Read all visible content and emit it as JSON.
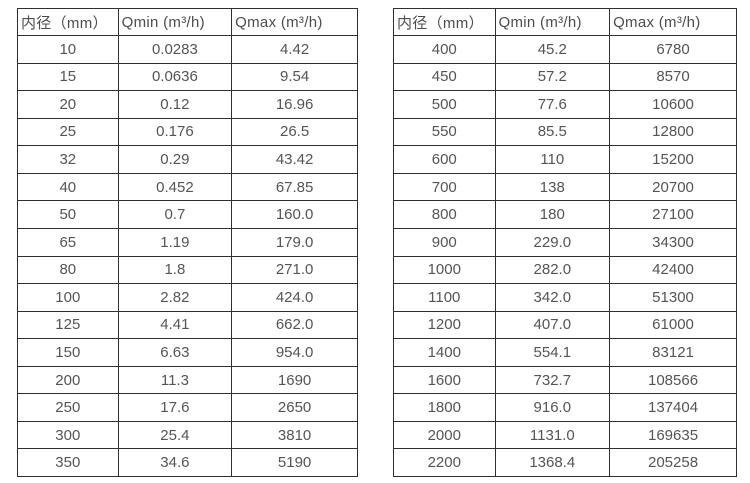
{
  "page": {
    "background": "#ffffff"
  },
  "colors": {
    "border": "#2f2f2f",
    "text": "#555555",
    "header_text": "#4d4d4d"
  },
  "chart_data": [
    {
      "type": "table",
      "title": "",
      "columns": [
        "内径（mm）",
        "Qmin (m³/h)",
        "Qmax (m³/h)"
      ],
      "rows": [
        [
          "10",
          "0.0283",
          "4.42"
        ],
        [
          "15",
          "0.0636",
          "9.54"
        ],
        [
          "20",
          "0.12",
          "16.96"
        ],
        [
          "25",
          "0.176",
          "26.5"
        ],
        [
          "32",
          "0.29",
          "43.42"
        ],
        [
          "40",
          "0.452",
          "67.85"
        ],
        [
          "50",
          "0.7",
          "160.0"
        ],
        [
          "65",
          "1.19",
          "179.0"
        ],
        [
          "80",
          "1.8",
          "271.0"
        ],
        [
          "100",
          "2.82",
          "424.0"
        ],
        [
          "125",
          "4.41",
          "662.0"
        ],
        [
          "150",
          "6.63",
          "954.0"
        ],
        [
          "200",
          "11.3",
          "1690"
        ],
        [
          "250",
          "17.6",
          "2650"
        ],
        [
          "300",
          "25.4",
          "3810"
        ],
        [
          "350",
          "34.6",
          "5190"
        ]
      ]
    },
    {
      "type": "table",
      "title": "",
      "columns": [
        "内径（mm）",
        "Qmin (m³/h)",
        "Qmax (m³/h)"
      ],
      "rows": [
        [
          "400",
          "45.2",
          "6780"
        ],
        [
          "450",
          "57.2",
          "8570"
        ],
        [
          "500",
          "77.6",
          "10600"
        ],
        [
          "550",
          "85.5",
          "12800"
        ],
        [
          "600",
          "110",
          "15200"
        ],
        [
          "700",
          "138",
          "20700"
        ],
        [
          "800",
          "180",
          "27100"
        ],
        [
          "900",
          "229.0",
          "34300"
        ],
        [
          "1000",
          "282.0",
          "42400"
        ],
        [
          "1100",
          "342.0",
          "51300"
        ],
        [
          "1200",
          "407.0",
          "61000"
        ],
        [
          "1400",
          "554.1",
          "83121"
        ],
        [
          "1600",
          "732.7",
          "108566"
        ],
        [
          "1800",
          "916.0",
          "137404"
        ],
        [
          "2000",
          "1131.0",
          "169635"
        ],
        [
          "2200",
          "1368.4",
          "205258"
        ]
      ]
    }
  ]
}
